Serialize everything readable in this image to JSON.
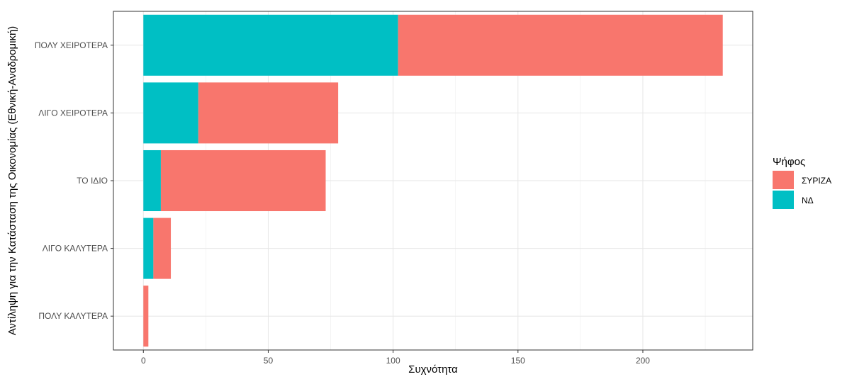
{
  "chart_data": {
    "type": "bar",
    "orientation": "horizontal",
    "stacked": true,
    "categories": [
      "ΠΟΛΥ ΧΕΙΡΟΤΕΡΑ",
      "ΛΙΓΟ ΧΕΙΡΟΤΕΡΑ",
      "ΤΟ ΙΔΙΟ",
      "ΛΙΓΟ ΚΑΛΥΤΕΡΑ",
      "ΠΟΛΥ ΚΑΛΥΤΕΡΑ"
    ],
    "series": [
      {
        "name": "ΝΔ",
        "color": "#00BFC4",
        "values": [
          102,
          22,
          7,
          4,
          0
        ]
      },
      {
        "name": "ΣΥΡΙΖΑ",
        "color": "#F8766D",
        "values": [
          130,
          56,
          66,
          7,
          2
        ]
      }
    ],
    "xlabel": "Συχνότητα",
    "ylabel": "Αντίληψη για την Κατάσταση της Οικονομίας (Εθνική-Αναδρομική)",
    "xlim": [
      -12,
      244
    ],
    "xticks": [
      "0",
      "50",
      "100",
      "150",
      "200"
    ],
    "grid": true,
    "legend": {
      "title": "Ψήφος",
      "position": "right",
      "entries": [
        {
          "label": "ΣΥΡΙΖΑ",
          "color": "#F8766D"
        },
        {
          "label": "ΝΔ",
          "color": "#00BFC4"
        }
      ]
    }
  }
}
